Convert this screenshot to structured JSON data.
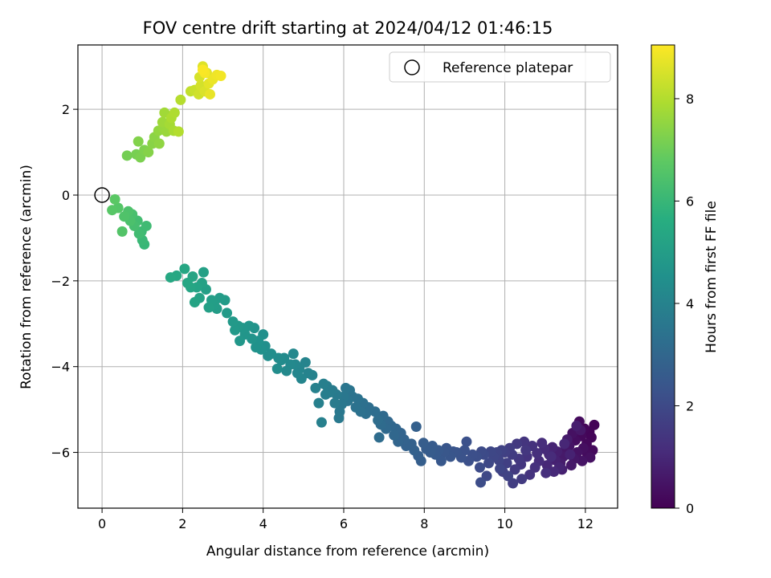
{
  "chart_data": {
    "type": "scatter",
    "title": "FOV centre drift starting at 2024/04/12 01:46:15",
    "xlabel": "Angular distance from reference (arcmin)",
    "ylabel": "Rotation from reference (arcmin)",
    "xlim": [
      -0.6,
      12.8
    ],
    "ylim": [
      -7.3,
      3.5
    ],
    "x_ticks": [
      0,
      2,
      4,
      6,
      8,
      10,
      12
    ],
    "y_ticks": [
      -6,
      -4,
      -2,
      0,
      2
    ],
    "x_tick_labels": [
      "0",
      "2",
      "4",
      "6",
      "8",
      "10",
      "12"
    ],
    "y_tick_labels": [
      "−6",
      "−4",
      "−2",
      "0",
      "2"
    ],
    "grid": true,
    "legend": {
      "position": "top-right",
      "entries": [
        "Reference platepar"
      ]
    },
    "reference_point": {
      "x": 0,
      "y": 0,
      "label": "Reference platepar"
    },
    "colorbar": {
      "label": "Hours from first FF file",
      "range": [
        0,
        9.05
      ],
      "ticks": [
        0,
        2,
        4,
        6,
        8
      ],
      "tick_labels": [
        "0",
        "2",
        "4",
        "6",
        "8"
      ],
      "colormap": "viridis"
    },
    "points": [
      [
        12.22,
        -5.36,
        0.05
      ],
      [
        12.1,
        -5.52,
        0.08
      ],
      [
        12.15,
        -5.65,
        0.11
      ],
      [
        11.98,
        -5.45,
        0.14
      ],
      [
        12.03,
        -5.8,
        0.17
      ],
      [
        11.9,
        -5.62,
        0.2
      ],
      [
        12.18,
        -5.95,
        0.23
      ],
      [
        11.85,
        -5.28,
        0.26
      ],
      [
        12.05,
        -6.05,
        0.29
      ],
      [
        11.75,
        -5.72,
        0.32
      ],
      [
        11.95,
        -5.9,
        0.35
      ],
      [
        12.12,
        -6.12,
        0.38
      ],
      [
        11.68,
        -5.55,
        0.41
      ],
      [
        11.8,
        -6.0,
        0.44
      ],
      [
        11.92,
        -6.2,
        0.47
      ],
      [
        11.6,
        -5.85,
        0.5
      ],
      [
        11.72,
        -6.15,
        0.53
      ],
      [
        11.5,
        -5.95,
        0.56
      ],
      [
        11.88,
        -5.48,
        0.59
      ],
      [
        11.65,
        -6.3,
        0.62
      ],
      [
        11.45,
        -6.1,
        0.65
      ],
      [
        11.55,
        -5.7,
        0.68
      ],
      [
        11.38,
        -6.25,
        0.71
      ],
      [
        11.78,
        -5.38,
        0.74
      ],
      [
        11.3,
        -5.98,
        0.77
      ],
      [
        11.42,
        -6.4,
        0.8
      ],
      [
        11.25,
        -6.18,
        0.83
      ],
      [
        11.62,
        -6.05,
        0.86
      ],
      [
        11.18,
        -5.88,
        0.89
      ],
      [
        11.35,
        -6.35,
        0.92
      ],
      [
        11.1,
        -6.05,
        0.95
      ],
      [
        11.48,
        -5.8,
        0.98
      ],
      [
        11.05,
        -6.3,
        1.01
      ],
      [
        11.22,
        -6.45,
        1.04
      ],
      [
        10.98,
        -5.92,
        1.07
      ],
      [
        11.15,
        -6.1,
        1.1
      ],
      [
        10.85,
        -6.2,
        1.13
      ],
      [
        10.92,
        -5.78,
        1.16
      ],
      [
        11.02,
        -6.48,
        1.19
      ],
      [
        10.8,
        -6.02,
        1.22
      ],
      [
        10.75,
        -6.35,
        1.25
      ],
      [
        10.68,
        -5.85,
        1.28
      ],
      [
        10.55,
        -6.1,
        1.31
      ],
      [
        10.62,
        -6.52,
        1.34
      ],
      [
        10.48,
        -5.75,
        1.37
      ],
      [
        10.4,
        -6.28,
        1.4
      ],
      [
        10.52,
        -5.95,
        1.43
      ],
      [
        10.35,
        -6.15,
        1.46
      ],
      [
        10.3,
        -5.8,
        1.49
      ],
      [
        10.25,
        -6.4,
        1.52
      ],
      [
        10.42,
        -6.62,
        1.55
      ],
      [
        10.18,
        -6.05,
        1.58
      ],
      [
        10.12,
        -5.9,
        1.61
      ],
      [
        10.2,
        -6.72,
        1.64
      ],
      [
        10.05,
        -6.25,
        1.67
      ],
      [
        10.0,
        -6.0,
        1.7
      ],
      [
        9.95,
        -6.45,
        1.73
      ],
      [
        9.92,
        -5.95,
        1.76
      ],
      [
        10.08,
        -6.55,
        1.79
      ],
      [
        9.85,
        -6.18,
        1.82
      ],
      [
        9.8,
        -6.0,
        1.85
      ],
      [
        9.88,
        -6.38,
        1.88
      ],
      [
        9.72,
        -6.1,
        1.91
      ],
      [
        9.65,
        -5.98,
        1.94
      ],
      [
        9.6,
        -6.25,
        1.97
      ],
      [
        9.55,
        -6.55,
        2.0
      ],
      [
        9.48,
        -6.05,
        2.03
      ],
      [
        9.42,
        -5.98,
        2.06
      ],
      [
        9.38,
        -6.35,
        2.09
      ],
      [
        9.4,
        -6.7,
        2.12
      ],
      [
        9.3,
        -6.1,
        2.15
      ],
      [
        9.2,
        -6.05,
        2.18
      ],
      [
        9.1,
        -6.2,
        2.21
      ],
      [
        9.05,
        -5.75,
        2.24
      ],
      [
        9.0,
        -5.95,
        2.27
      ],
      [
        8.92,
        -6.12,
        2.3
      ],
      [
        8.8,
        -6.0,
        2.33
      ],
      [
        8.72,
        -5.98,
        2.36
      ],
      [
        8.65,
        -6.1,
        2.39
      ],
      [
        8.55,
        -5.9,
        2.42
      ],
      [
        8.5,
        -6.0,
        2.45
      ],
      [
        8.42,
        -6.2,
        2.48
      ],
      [
        8.35,
        -5.95,
        2.51
      ],
      [
        8.28,
        -6.05,
        2.54
      ],
      [
        8.2,
        -5.85,
        2.57
      ],
      [
        8.15,
        -6.0,
        2.6
      ],
      [
        8.05,
        -5.92,
        2.63
      ],
      [
        7.98,
        -5.78,
        2.66
      ],
      [
        7.92,
        -6.2,
        2.69
      ],
      [
        7.85,
        -6.08,
        2.72
      ],
      [
        7.8,
        -5.4,
        2.75
      ],
      [
        7.75,
        -5.95,
        2.78
      ],
      [
        7.68,
        -5.8,
        2.81
      ],
      [
        7.55,
        -5.85,
        2.84
      ],
      [
        7.5,
        -5.7,
        2.87
      ],
      [
        7.42,
        -5.55,
        2.9
      ],
      [
        7.35,
        -5.75,
        2.93
      ],
      [
        7.3,
        -5.45,
        2.96
      ],
      [
        7.25,
        -5.6,
        2.99
      ],
      [
        7.18,
        -5.38,
        3.02
      ],
      [
        7.1,
        -5.28,
        3.05
      ],
      [
        7.05,
        -5.45,
        3.08
      ],
      [
        6.98,
        -5.15,
        3.11
      ],
      [
        6.92,
        -5.35,
        3.14
      ],
      [
        6.88,
        -5.65,
        3.17
      ],
      [
        6.85,
        -5.25,
        3.2
      ],
      [
        6.78,
        -5.05,
        3.23
      ],
      [
        6.62,
        -4.95,
        3.26
      ],
      [
        6.55,
        -5.1,
        3.29
      ],
      [
        6.48,
        -4.85,
        3.32
      ],
      [
        6.42,
        -5.05,
        3.35
      ],
      [
        6.35,
        -4.75,
        3.38
      ],
      [
        6.3,
        -4.95,
        3.41
      ],
      [
        6.22,
        -4.7,
        3.44
      ],
      [
        6.15,
        -4.55,
        3.47
      ],
      [
        6.1,
        -4.8,
        3.5
      ],
      [
        6.05,
        -4.5,
        3.53
      ],
      [
        6.0,
        -4.7,
        3.56
      ],
      [
        5.95,
        -4.88,
        3.59
      ],
      [
        5.9,
        -5.05,
        3.62
      ],
      [
        5.88,
        -5.2,
        3.65
      ],
      [
        5.82,
        -4.65,
        3.68
      ],
      [
        5.78,
        -4.85,
        3.71
      ],
      [
        5.72,
        -4.55,
        3.74
      ],
      [
        5.65,
        -4.6,
        3.77
      ],
      [
        5.58,
        -4.45,
        3.8
      ],
      [
        5.55,
        -4.65,
        3.83
      ],
      [
        5.5,
        -4.4,
        3.86
      ],
      [
        5.45,
        -5.3,
        3.89
      ],
      [
        5.38,
        -4.85,
        3.92
      ],
      [
        5.3,
        -4.5,
        3.95
      ],
      [
        5.22,
        -4.2,
        3.98
      ],
      [
        5.12,
        -4.15,
        4.01
      ],
      [
        5.05,
        -3.9,
        4.04
      ],
      [
        4.95,
        -4.28,
        4.07
      ],
      [
        4.9,
        -4.05,
        4.1
      ],
      [
        4.85,
        -4.15,
        4.13
      ],
      [
        4.8,
        -3.95,
        4.16
      ],
      [
        4.75,
        -3.7,
        4.19
      ],
      [
        4.68,
        -3.95,
        4.22
      ],
      [
        4.58,
        -4.1,
        4.25
      ],
      [
        4.52,
        -3.8,
        4.28
      ],
      [
        4.45,
        -3.85,
        4.31
      ],
      [
        4.38,
        -3.8,
        4.34
      ],
      [
        4.35,
        -4.05,
        4.37
      ],
      [
        4.2,
        -3.7,
        4.4
      ],
      [
        4.12,
        -3.75,
        4.43
      ],
      [
        4.05,
        -3.52,
        4.46
      ],
      [
        4.0,
        -3.25,
        4.49
      ],
      [
        3.95,
        -3.6,
        4.52
      ],
      [
        3.88,
        -3.4,
        4.55
      ],
      [
        3.82,
        -3.55,
        4.58
      ],
      [
        3.78,
        -3.1,
        4.61
      ],
      [
        3.72,
        -3.35,
        4.64
      ],
      [
        3.65,
        -3.05,
        4.67
      ],
      [
        3.55,
        -3.25,
        4.7
      ],
      [
        3.5,
        -3.1,
        4.73
      ],
      [
        3.42,
        -3.4,
        4.76
      ],
      [
        3.38,
        -3.05,
        4.79
      ],
      [
        3.3,
        -3.15,
        4.82
      ],
      [
        3.25,
        -2.95,
        4.85
      ],
      [
        3.1,
        -2.75,
        4.88
      ],
      [
        3.05,
        -2.45,
        4.91
      ],
      [
        2.92,
        -2.4,
        4.94
      ],
      [
        2.85,
        -2.65,
        4.97
      ],
      [
        2.78,
        -2.55,
        5.0
      ],
      [
        2.72,
        -2.45,
        5.03
      ],
      [
        2.65,
        -2.62,
        5.06
      ],
      [
        2.58,
        -2.2,
        5.09
      ],
      [
        2.52,
        -1.8,
        5.12
      ],
      [
        2.48,
        -2.05,
        5.15
      ],
      [
        2.42,
        -2.4,
        5.18
      ],
      [
        2.35,
        -2.15,
        5.21
      ],
      [
        2.3,
        -2.5,
        5.24
      ],
      [
        2.25,
        -1.9,
        5.27
      ],
      [
        2.2,
        -2.15,
        5.3
      ],
      [
        2.12,
        -2.05,
        5.33
      ],
      [
        2.05,
        -1.72,
        5.36
      ],
      [
        1.85,
        -1.88,
        5.39
      ],
      [
        1.7,
        -1.92,
        5.42
      ],
      [
        1.05,
        -1.15,
        6.0
      ],
      [
        1.0,
        -1.05,
        6.05
      ],
      [
        0.98,
        -0.85,
        6.1
      ],
      [
        1.1,
        -0.72,
        6.15
      ],
      [
        0.92,
        -0.9,
        6.2
      ],
      [
        0.88,
        -0.6,
        6.25
      ],
      [
        0.8,
        -0.72,
        6.3
      ],
      [
        0.75,
        -0.45,
        6.35
      ],
      [
        0.7,
        -0.6,
        6.4
      ],
      [
        0.65,
        -0.38,
        6.45
      ],
      [
        0.55,
        -0.5,
        6.5
      ],
      [
        0.5,
        -0.85,
        6.55
      ],
      [
        0.4,
        -0.3,
        6.6
      ],
      [
        0.25,
        -0.35,
        6.65
      ],
      [
        0.32,
        -0.1,
        6.7
      ],
      [
        0.62,
        0.92,
        7.1
      ],
      [
        0.85,
        0.95,
        7.15
      ],
      [
        0.95,
        0.88,
        7.2
      ],
      [
        1.05,
        1.05,
        7.25
      ],
      [
        0.9,
        1.25,
        7.3
      ],
      [
        1.15,
        1.0,
        7.35
      ],
      [
        1.25,
        1.2,
        7.4
      ],
      [
        1.3,
        1.35,
        7.45
      ],
      [
        1.42,
        1.2,
        7.5
      ],
      [
        1.4,
        1.5,
        7.55
      ],
      [
        1.52,
        1.55,
        7.6
      ],
      [
        1.6,
        1.48,
        7.65
      ],
      [
        1.5,
        1.7,
        7.7
      ],
      [
        1.55,
        1.92,
        7.75
      ],
      [
        1.68,
        1.65,
        7.8
      ],
      [
        1.78,
        1.5,
        7.85
      ],
      [
        1.72,
        1.8,
        7.9
      ],
      [
        1.8,
        1.92,
        7.95
      ],
      [
        1.9,
        1.48,
        8.0
      ],
      [
        1.95,
        2.22,
        8.05
      ],
      [
        2.2,
        2.42,
        8.2
      ],
      [
        2.3,
        2.45,
        8.3
      ],
      [
        2.4,
        2.35,
        8.4
      ],
      [
        2.45,
        2.55,
        8.45
      ],
      [
        2.42,
        2.75,
        8.5
      ],
      [
        2.55,
        2.42,
        8.55
      ],
      [
        2.5,
        3.0,
        8.6
      ],
      [
        2.6,
        2.85,
        8.65
      ],
      [
        2.65,
        2.6,
        8.7
      ],
      [
        2.68,
        2.35,
        8.75
      ],
      [
        2.75,
        2.7,
        8.8
      ],
      [
        2.85,
        2.8,
        8.85
      ],
      [
        2.95,
        2.78,
        8.9
      ],
      [
        2.55,
        2.85,
        8.95
      ],
      [
        2.5,
        2.92,
        9.0
      ]
    ]
  }
}
